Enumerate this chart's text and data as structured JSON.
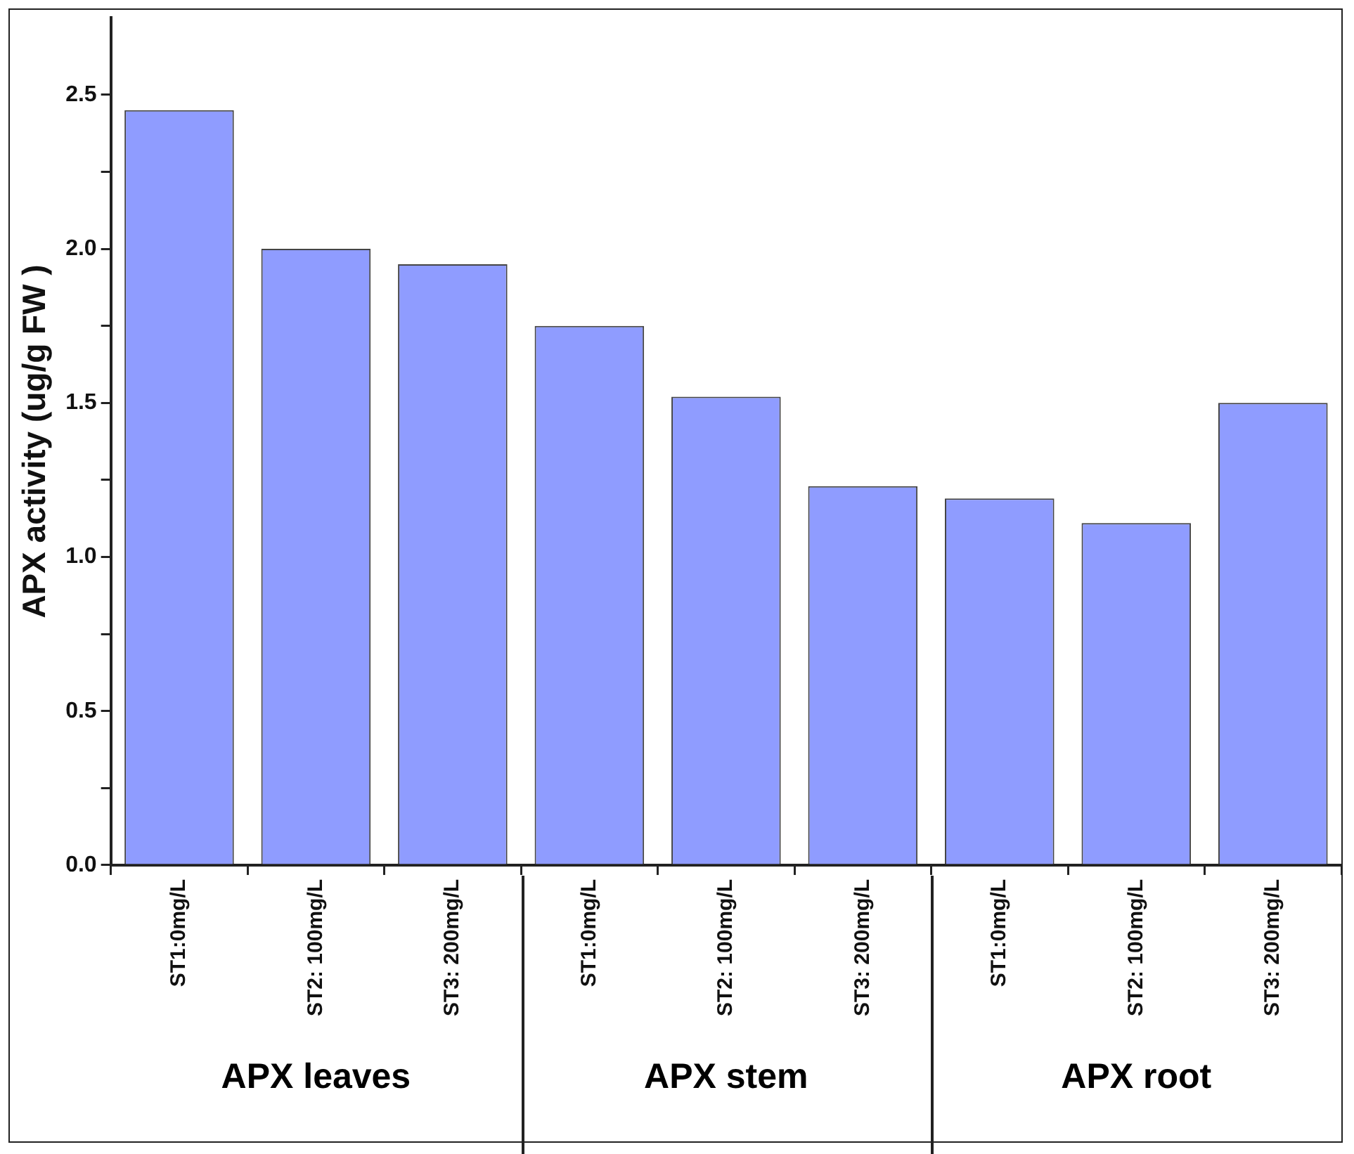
{
  "chart_data": {
    "type": "bar",
    "ylabel": "APX activity (ug/g FW )",
    "categories": [
      "ST1:0mg/L",
      "ST2: 100mg/L",
      "ST3: 200mg/L",
      "ST1:0mg/L",
      "ST2: 100mg/L",
      "ST3: 200mg/L",
      "ST1:0mg/L",
      "ST2: 100mg/L",
      "ST3: 200mg/L"
    ],
    "values": [
      2.45,
      2.0,
      1.95,
      1.75,
      1.52,
      1.23,
      1.19,
      1.11,
      1.5
    ],
    "color": "#8f9cff",
    "ylim": [
      0,
      2.75
    ],
    "yticks": [
      {
        "value": 0,
        "label": "0.0"
      },
      {
        "value": 0.25,
        "label": null
      },
      {
        "value": 0.5,
        "label": "0.5"
      },
      {
        "value": 0.75,
        "label": null
      },
      {
        "value": 1,
        "label": "1.0"
      },
      {
        "value": 1.25,
        "label": null
      },
      {
        "value": 1.5,
        "label": "1.5"
      },
      {
        "value": 1.75,
        "label": null
      },
      {
        "value": 2,
        "label": "2.0"
      },
      {
        "value": 2.25,
        "label": null
      },
      {
        "value": 2.5,
        "label": "2.5"
      }
    ],
    "annotations": [
      "APX leaves",
      "APX stem",
      "APX root"
    ],
    "grid": false,
    "legend": false
  }
}
